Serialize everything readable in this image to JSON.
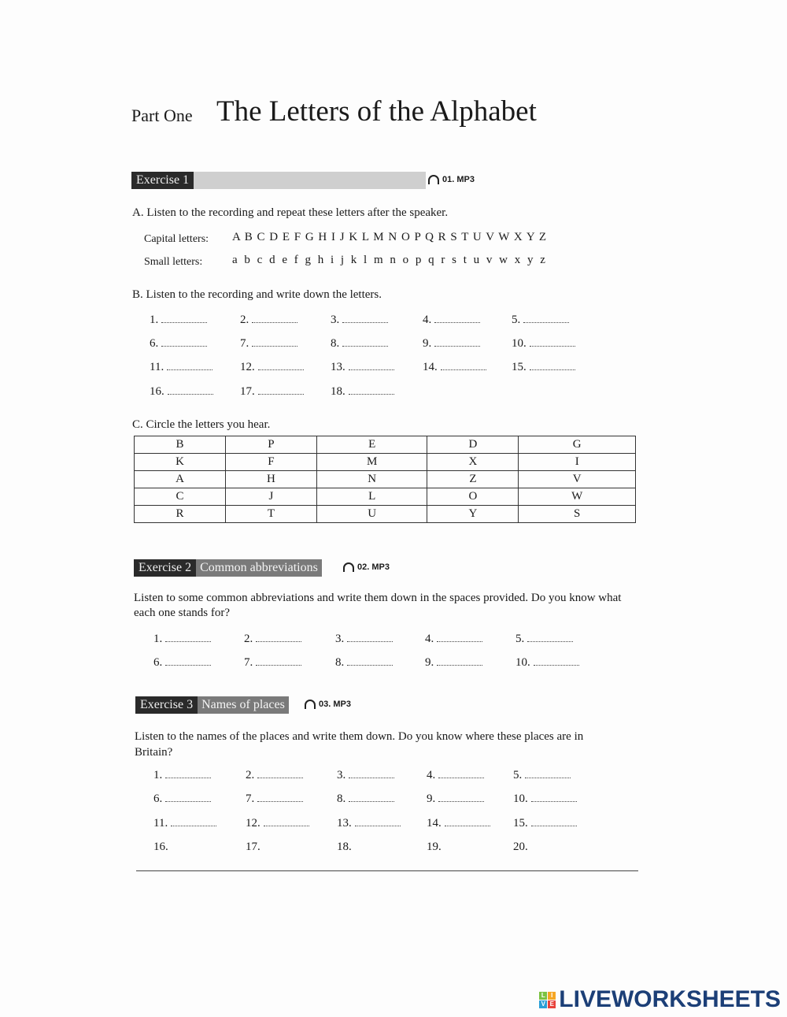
{
  "header": {
    "part": "Part One",
    "title": "The Letters of the Alphabet"
  },
  "ex1": {
    "label": "Exercise 1",
    "audio": "01. MP3",
    "a": {
      "instruction": "A. Listen to the recording and repeat these letters after the speaker.",
      "capital_label": "Capital letters:",
      "capital": "A B C D E F G H I J K L M N O P Q R S T U V W X Y Z",
      "small_label": "Small letters:",
      "small": "a b c d e f g h i j k l m n o p q r s t u v w x y z"
    },
    "b": {
      "instruction": "B. Listen to the recording and write down the letters.",
      "items": [
        "1.",
        "2.",
        "3.",
        "4.",
        "5.",
        "6.",
        "7.",
        "8.",
        "9.",
        "10.",
        "11.",
        "12.",
        "13.",
        "14.",
        "15.",
        "16.",
        "17.",
        "18."
      ]
    },
    "c": {
      "instruction": "C. Circle the letters you hear.",
      "rows": [
        [
          "B",
          "P",
          "E",
          "D",
          "G"
        ],
        [
          "K",
          "F",
          "M",
          "X",
          "I"
        ],
        [
          "A",
          "H",
          "N",
          "Z",
          "V"
        ],
        [
          "C",
          "J",
          "L",
          "O",
          "W"
        ],
        [
          "R",
          "T",
          "U",
          "Y",
          "S"
        ]
      ]
    }
  },
  "ex2": {
    "label": "Exercise 2",
    "subtitle": "Common abbreviations",
    "audio": "02. MP3",
    "instruction_1": "Listen to some common abbreviations and write them down in the spaces provided. Do you know what",
    "instruction_2": "each one stands for?",
    "items": [
      "1.",
      "2.",
      "3.",
      "4.",
      "5.",
      "6.",
      "7.",
      "8.",
      "9.",
      "10."
    ]
  },
  "ex3": {
    "label": "Exercise 3",
    "subtitle": "Names of places",
    "audio": "03. MP3",
    "instruction_1": "Listen to the names of the places and write them down. Do you know where these places are in",
    "instruction_2": "Britain?",
    "items": [
      "1.",
      "2.",
      "3.",
      "4.",
      "5.",
      "6.",
      "7.",
      "8.",
      "9.",
      "10.",
      "11.",
      "12.",
      "13.",
      "14.",
      "15.",
      "16.",
      "17.",
      "18.",
      "19.",
      "20."
    ]
  },
  "brand": {
    "logo_text": "LIVEWORKSHEETS",
    "icon_letters": [
      "L",
      "I",
      "V",
      "E"
    ],
    "colors": [
      "#7cc242",
      "#f6a623",
      "#2a9fd6",
      "#e8423b"
    ]
  }
}
